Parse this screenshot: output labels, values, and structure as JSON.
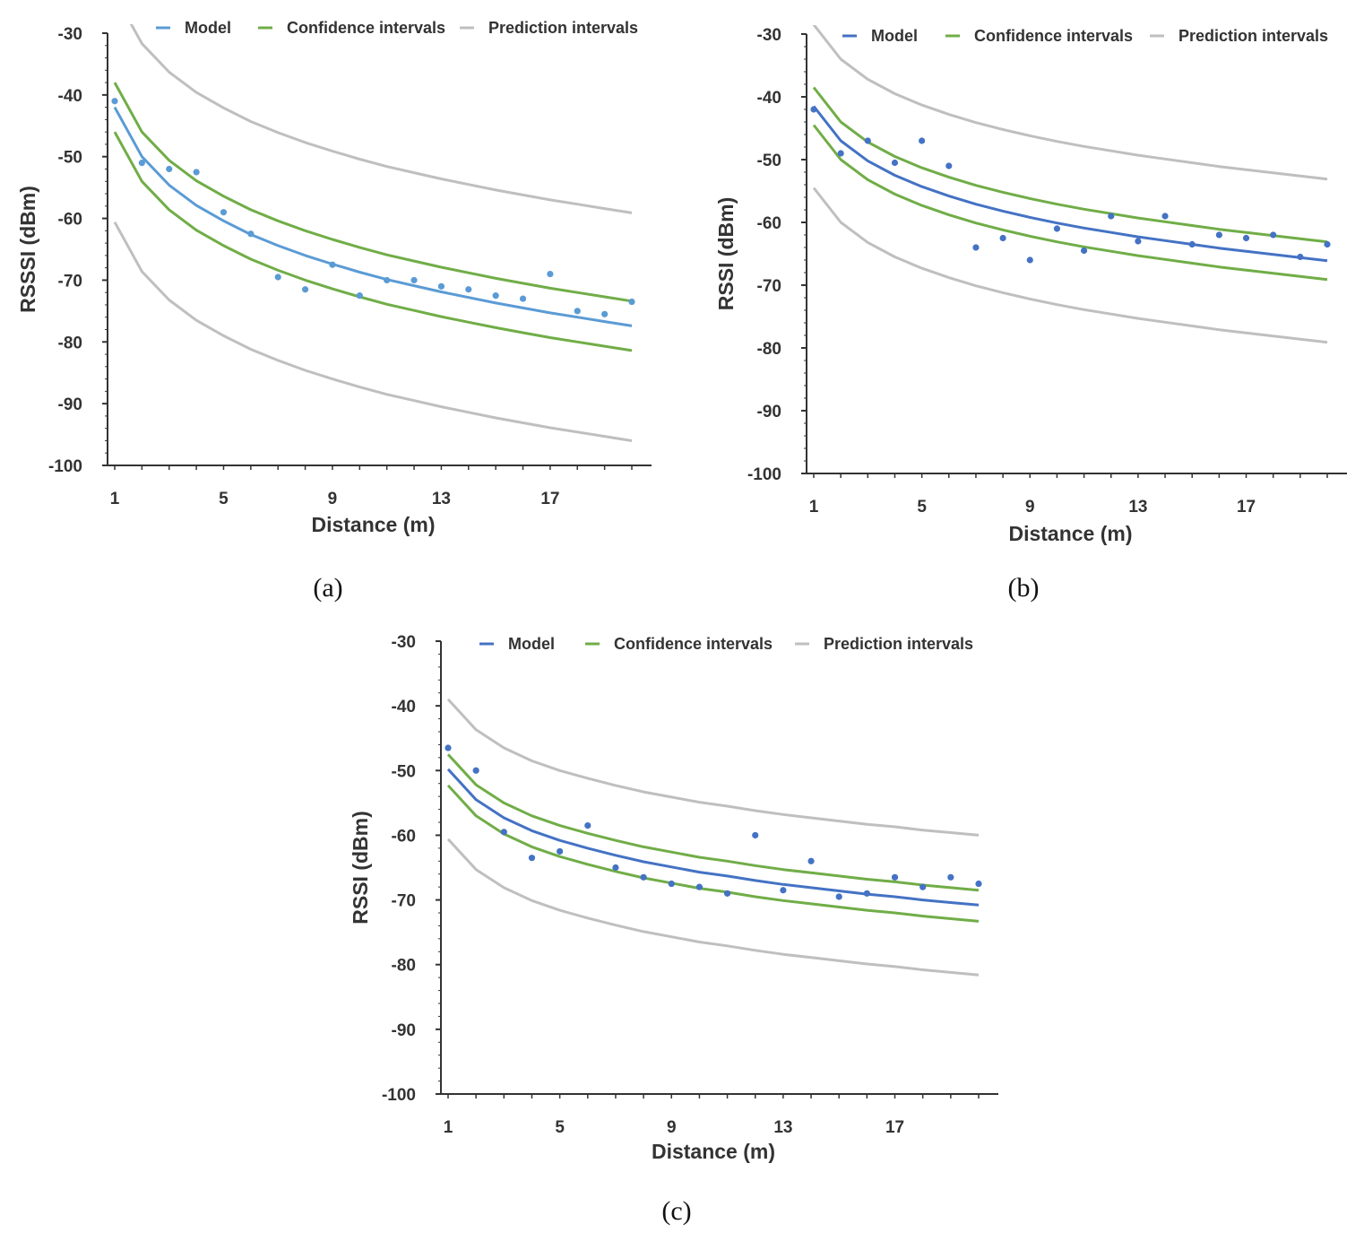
{
  "chart_data": [
    {
      "type": "line",
      "panel_label": "(a)",
      "xlabel": "Distance (m)",
      "ylabel": "RSSSI (dBm)",
      "xlim": [
        1,
        20
      ],
      "ylim": [
        -100,
        -30
      ],
      "xticks": [
        "1",
        "5",
        "9",
        "13",
        "17"
      ],
      "xtick_values": [
        1,
        5,
        9,
        13,
        17
      ],
      "yticks": [
        "-30",
        "-40",
        "-50",
        "-60",
        "-70",
        "-80",
        "-90",
        "-100"
      ],
      "ytick_values": [
        -30,
        -40,
        -50,
        -60,
        -70,
        -80,
        -90,
        -100
      ],
      "legend_placement": "top",
      "x": [
        1,
        2,
        3,
        4,
        5,
        6,
        7,
        8,
        9,
        10,
        11,
        12,
        13,
        14,
        15,
        16,
        17,
        18,
        19,
        20
      ],
      "series": [
        {
          "name": "Model",
          "color": "#5b9bd5",
          "values": [
            -42,
            -50,
            -54.6,
            -57.9,
            -60.4,
            -62.6,
            -64.4,
            -66,
            -67.4,
            -68.7,
            -69.9,
            -70.9,
            -71.9,
            -72.8,
            -73.7,
            -74.5,
            -75.3,
            -76,
            -76.7,
            -77.4
          ]
        },
        {
          "name": "Confidence intervals",
          "color": "#70ad47",
          "values": [
            -38,
            -46,
            -50.6,
            -53.9,
            -56.4,
            -58.6,
            -60.4,
            -62,
            -63.4,
            -64.7,
            -65.9,
            -66.9,
            -67.9,
            -68.8,
            -69.7,
            -70.5,
            -71.3,
            -72,
            -72.7,
            -73.4
          ]
        },
        {
          "name": "",
          "legend": false,
          "color": "#70ad47",
          "values": [
            -46,
            -54,
            -58.6,
            -61.9,
            -64.4,
            -66.6,
            -68.4,
            -70,
            -71.4,
            -72.7,
            -73.9,
            -74.9,
            -75.9,
            -76.8,
            -77.7,
            -78.5,
            -79.3,
            -80,
            -80.7,
            -81.4
          ]
        },
        {
          "name": "Prediction intervals",
          "color": "#bfbfbf",
          "values": [
            -23.7,
            -31.7,
            -36.3,
            -39.6,
            -42.1,
            -44.3,
            -46.1,
            -47.7,
            -49.1,
            -50.4,
            -51.6,
            -52.6,
            -53.6,
            -54.5,
            -55.4,
            -56.2,
            -57,
            -57.7,
            -58.4,
            -59.1
          ]
        },
        {
          "name": "",
          "legend": false,
          "color": "#bfbfbf",
          "values": [
            -60.6,
            -68.6,
            -73.2,
            -76.5,
            -79,
            -81.2,
            -83,
            -84.6,
            -86,
            -87.3,
            -88.5,
            -89.5,
            -90.5,
            -91.4,
            -92.3,
            -93.1,
            -93.9,
            -94.6,
            -95.3,
            -96
          ]
        }
      ],
      "points": {
        "color": "#5b9bd5",
        "x": [
          1,
          2,
          3,
          4,
          5,
          6,
          7,
          8,
          9,
          10,
          11,
          12,
          13,
          14,
          15,
          16,
          17,
          18,
          19,
          20
        ],
        "y": [
          -41,
          -51,
          -52,
          -52.5,
          -59,
          -62.5,
          -69.5,
          -71.5,
          -67.5,
          -72.5,
          -70,
          -70,
          -71,
          -71.5,
          -72.5,
          -73,
          -69,
          -75,
          -75.5,
          -73.5
        ]
      }
    },
    {
      "type": "line",
      "panel_label": "(b)",
      "xlabel": "Distance (m)",
      "ylabel": "RSSI (dBm)",
      "xlim": [
        1,
        20
      ],
      "ylim": [
        -100,
        -30
      ],
      "xticks": [
        "1",
        "5",
        "9",
        "13",
        "17"
      ],
      "xtick_values": [
        1,
        5,
        9,
        13,
        17
      ],
      "yticks": [
        "-30",
        "-40",
        "-50",
        "-60",
        "-70",
        "-80",
        "-90",
        "-100"
      ],
      "ytick_values": [
        -30,
        -40,
        -50,
        -60,
        -70,
        -80,
        -90,
        -100
      ],
      "legend_placement": "top",
      "x": [
        1,
        2,
        3,
        4,
        5,
        6,
        7,
        8,
        9,
        10,
        11,
        12,
        13,
        14,
        15,
        16,
        17,
        18,
        19,
        20
      ],
      "series": [
        {
          "name": "Model",
          "color": "#4472c4",
          "values": [
            -41.5,
            -47,
            -50.2,
            -52.5,
            -54.3,
            -55.8,
            -57.1,
            -58.2,
            -59.2,
            -60.1,
            -60.9,
            -61.6,
            -62.3,
            -62.9,
            -63.5,
            -64.1,
            -64.6,
            -65.1,
            -65.6,
            -66.1
          ]
        },
        {
          "name": "Confidence intervals",
          "color": "#70ad47",
          "values": [
            -38.5,
            -44,
            -47.2,
            -49.5,
            -51.3,
            -52.8,
            -54.1,
            -55.2,
            -56.2,
            -57.1,
            -57.9,
            -58.6,
            -59.3,
            -59.9,
            -60.5,
            -61.1,
            -61.6,
            -62.1,
            -62.6,
            -63.1
          ]
        },
        {
          "name": "",
          "legend": false,
          "color": "#70ad47",
          "values": [
            -44.5,
            -50,
            -53.2,
            -55.5,
            -57.3,
            -58.8,
            -60.1,
            -61.2,
            -62.2,
            -63.1,
            -63.9,
            -64.6,
            -65.3,
            -65.9,
            -66.5,
            -67.1,
            -67.6,
            -68.1,
            -68.6,
            -69.1
          ]
        },
        {
          "name": "Prediction intervals",
          "color": "#bfbfbf",
          "values": [
            -28.5,
            -34,
            -37.2,
            -39.5,
            -41.3,
            -42.8,
            -44.1,
            -45.2,
            -46.2,
            -47.1,
            -47.9,
            -48.6,
            -49.3,
            -49.9,
            -50.5,
            -51.1,
            -51.6,
            -52.1,
            -52.6,
            -53.1
          ]
        },
        {
          "name": "",
          "legend": false,
          "color": "#bfbfbf",
          "values": [
            -54.5,
            -60,
            -63.2,
            -65.5,
            -67.3,
            -68.8,
            -70.1,
            -71.2,
            -72.2,
            -73.1,
            -73.9,
            -74.6,
            -75.3,
            -75.9,
            -76.5,
            -77.1,
            -77.6,
            -78.1,
            -78.6,
            -79.1
          ]
        }
      ],
      "points": {
        "color": "#4472c4",
        "x": [
          1,
          2,
          3,
          4,
          5,
          6,
          7,
          8,
          9,
          10,
          11,
          12,
          13,
          14,
          15,
          16,
          17,
          18,
          19,
          20
        ],
        "y": [
          -42,
          -49,
          -47,
          -50.5,
          -47,
          -51,
          -64,
          -62.5,
          -66,
          -61,
          -64.5,
          -59,
          -63,
          -59,
          -63.5,
          -62,
          -62.5,
          -62,
          -65.5,
          -63.5
        ]
      }
    },
    {
      "type": "line",
      "panel_label": "(c)",
      "xlabel": "Distance (m)",
      "ylabel": "RSSI (dBm)",
      "xlim": [
        1,
        20
      ],
      "ylim": [
        -100,
        -30
      ],
      "xticks": [
        "1",
        "5",
        "9",
        "13",
        "17"
      ],
      "xtick_values": [
        1,
        5,
        9,
        13,
        17
      ],
      "yticks": [
        "-30",
        "-40",
        "-50",
        "-60",
        "-70",
        "-80",
        "-90",
        "-100"
      ],
      "ytick_values": [
        -30,
        -40,
        -50,
        -60,
        -70,
        -80,
        -90,
        -100
      ],
      "legend_placement": "top",
      "x": [
        1,
        2,
        3,
        4,
        5,
        6,
        7,
        8,
        9,
        10,
        11,
        12,
        13,
        14,
        15,
        16,
        17,
        18,
        19,
        20
      ],
      "series": [
        {
          "name": "Model",
          "color": "#4472c4",
          "values": [
            -49.8,
            -54.5,
            -57.3,
            -59.3,
            -60.8,
            -62,
            -63.1,
            -64.1,
            -64.9,
            -65.7,
            -66.3,
            -67,
            -67.6,
            -68.1,
            -68.6,
            -69.1,
            -69.5,
            -70,
            -70.4,
            -70.8
          ]
        },
        {
          "name": "Confidence intervals",
          "color": "#70ad47",
          "values": [
            -47.5,
            -52.2,
            -55,
            -57,
            -58.5,
            -59.7,
            -60.8,
            -61.8,
            -62.6,
            -63.4,
            -64,
            -64.7,
            -65.3,
            -65.8,
            -66.3,
            -66.8,
            -67.2,
            -67.7,
            -68.1,
            -68.5
          ]
        },
        {
          "name": "",
          "legend": false,
          "color": "#70ad47",
          "values": [
            -52.3,
            -57,
            -59.8,
            -61.8,
            -63.3,
            -64.5,
            -65.6,
            -66.6,
            -67.4,
            -68.2,
            -68.8,
            -69.5,
            -70.1,
            -70.6,
            -71.1,
            -71.6,
            -72,
            -72.5,
            -72.9,
            -73.3
          ]
        },
        {
          "name": "Prediction intervals",
          "color": "#bfbfbf",
          "values": [
            -39,
            -43.7,
            -46.5,
            -48.5,
            -50,
            -51.2,
            -52.3,
            -53.3,
            -54.1,
            -54.9,
            -55.5,
            -56.2,
            -56.8,
            -57.3,
            -57.8,
            -58.3,
            -58.7,
            -59.2,
            -59.6,
            -60
          ]
        },
        {
          "name": "",
          "legend": false,
          "color": "#bfbfbf",
          "values": [
            -60.6,
            -65.3,
            -68.1,
            -70.1,
            -71.6,
            -72.8,
            -73.9,
            -74.9,
            -75.7,
            -76.5,
            -77.1,
            -77.8,
            -78.4,
            -78.9,
            -79.4,
            -79.9,
            -80.3,
            -80.8,
            -81.2,
            -81.6
          ]
        }
      ],
      "points": {
        "color": "#4472c4",
        "x": [
          1,
          2,
          3,
          4,
          5,
          6,
          7,
          8,
          9,
          10,
          11,
          12,
          13,
          14,
          15,
          16,
          17,
          18,
          19,
          20
        ],
        "y": [
          -46.5,
          -50,
          -59.5,
          -63.5,
          -62.5,
          -58.5,
          -65,
          -66.5,
          -67.5,
          -68,
          -69,
          -60,
          -68.5,
          -64,
          -69.5,
          -69,
          -66.5,
          -68,
          -66.5,
          -67.5
        ]
      }
    }
  ]
}
